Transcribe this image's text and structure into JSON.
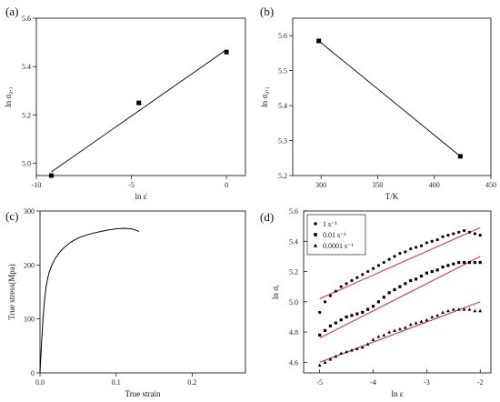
{
  "chart_data": [
    {
      "panel": "(a)",
      "type": "scatter",
      "xlabel": "ln ε̇",
      "ylabel": "ln σ₀.₁",
      "xlim": [
        -10,
        1
      ],
      "ylim": [
        4.95,
        5.6
      ],
      "xticks": [
        -10,
        -5,
        0
      ],
      "yticks": [
        5.0,
        5.2,
        5.4,
        5.6
      ],
      "points": [
        [
          -9.21,
          4.95
        ],
        [
          -4.61,
          5.25
        ],
        [
          0,
          5.46
        ]
      ],
      "fit": [
        [
          -9.21,
          4.965
        ],
        [
          0,
          5.47
        ]
      ],
      "fit_color": "#000000"
    },
    {
      "panel": "(b)",
      "type": "scatter",
      "xlabel": "T/K",
      "ylabel": "ln σ₀.₁",
      "xlim": [
        275,
        450
      ],
      "ylim": [
        5.2,
        5.65
      ],
      "xticks": [
        300,
        350,
        400,
        450
      ],
      "yticks": [
        5.2,
        5.3,
        5.4,
        5.5,
        5.6
      ],
      "points": [
        [
          298,
          5.585
        ],
        [
          423,
          5.255
        ]
      ],
      "fit": [
        [
          298,
          5.585
        ],
        [
          423,
          5.255
        ]
      ],
      "fit_color": "#000000"
    },
    {
      "panel": "(c)",
      "type": "line",
      "xlabel": "True strain",
      "ylabel": "True stress(Mpa)",
      "xlim": [
        0,
        0.27
      ],
      "ylim": [
        0,
        300
      ],
      "xticks": [
        0.0,
        0.1,
        0.2
      ],
      "yticks": [
        0,
        100,
        200,
        300
      ],
      "x": [
        0,
        0.002,
        0.004,
        0.006,
        0.008,
        0.01,
        0.012,
        0.015,
        0.02,
        0.025,
        0.03,
        0.04,
        0.05,
        0.06,
        0.07,
        0.08,
        0.09,
        0.1,
        0.11,
        0.12,
        0.125,
        0.13
      ],
      "y": [
        0,
        55,
        100,
        135,
        160,
        175,
        186,
        198,
        212,
        222,
        230,
        242,
        250,
        255,
        259,
        262,
        265,
        267,
        268,
        267,
        265,
        262
      ],
      "line_color": "#000000"
    },
    {
      "panel": "(d)",
      "type": "scatter",
      "xlabel": "ln ε",
      "ylabel": "ln σᵣ",
      "xlim": [
        -5.3,
        -1.8
      ],
      "ylim": [
        4.53,
        5.6
      ],
      "xticks": [
        -5,
        -4,
        -3,
        -2
      ],
      "yticks": [
        4.6,
        4.8,
        5.0,
        5.2,
        5.4,
        5.6
      ],
      "legend_position": "top-left",
      "series": [
        {
          "name": "1 s⁻¹",
          "marker": "circle",
          "x": [
            -5.0,
            -4.9,
            -4.8,
            -4.7,
            -4.6,
            -4.5,
            -4.4,
            -4.3,
            -4.2,
            -4.1,
            -4.0,
            -3.9,
            -3.8,
            -3.7,
            -3.6,
            -3.5,
            -3.4,
            -3.3,
            -3.2,
            -3.1,
            -3.0,
            -2.9,
            -2.8,
            -2.7,
            -2.6,
            -2.5,
            -2.4,
            -2.3,
            -2.2,
            -2.1,
            -2.0
          ],
          "y": [
            4.93,
            5.0,
            5.04,
            5.07,
            5.1,
            5.12,
            5.14,
            5.16,
            5.18,
            5.2,
            5.22,
            5.24,
            5.26,
            5.28,
            5.3,
            5.32,
            5.33,
            5.35,
            5.36,
            5.37,
            5.39,
            5.4,
            5.41,
            5.43,
            5.44,
            5.45,
            5.46,
            5.47,
            5.46,
            5.45,
            5.44
          ],
          "fit": [
            [
              -5.0,
              5.02
            ],
            [
              -2.0,
              5.49
            ]
          ]
        },
        {
          "name": "0.01 s⁻¹",
          "marker": "square",
          "x": [
            -5.0,
            -4.9,
            -4.8,
            -4.7,
            -4.6,
            -4.5,
            -4.4,
            -4.3,
            -4.2,
            -4.1,
            -4.0,
            -3.9,
            -3.8,
            -3.7,
            -3.6,
            -3.5,
            -3.4,
            -3.3,
            -3.2,
            -3.1,
            -3.0,
            -2.9,
            -2.8,
            -2.7,
            -2.6,
            -2.5,
            -2.4,
            -2.3,
            -2.2,
            -2.1,
            -2.0
          ],
          "y": [
            4.78,
            4.81,
            4.84,
            4.86,
            4.88,
            4.9,
            4.91,
            4.92,
            4.93,
            4.95,
            4.97,
            5.0,
            5.03,
            5.06,
            5.08,
            5.1,
            5.12,
            5.14,
            5.15,
            5.17,
            5.19,
            5.2,
            5.21,
            5.23,
            5.24,
            5.25,
            5.26,
            5.26,
            5.26,
            5.26,
            5.26
          ],
          "fit": [
            [
              -5.0,
              4.76
            ],
            [
              -2.0,
              5.3
            ]
          ]
        },
        {
          "name": "0.0001 s⁻¹",
          "marker": "triangle",
          "x": [
            -5.0,
            -4.9,
            -4.8,
            -4.7,
            -4.6,
            -4.5,
            -4.4,
            -4.3,
            -4.2,
            -4.1,
            -4.0,
            -3.9,
            -3.8,
            -3.7,
            -3.6,
            -3.5,
            -3.4,
            -3.3,
            -3.2,
            -3.1,
            -3.0,
            -2.9,
            -2.8,
            -2.7,
            -2.6,
            -2.5,
            -2.4,
            -2.3,
            -2.2,
            -2.1,
            -2.0
          ],
          "y": [
            4.58,
            4.6,
            4.62,
            4.64,
            4.66,
            4.67,
            4.68,
            4.69,
            4.7,
            4.72,
            4.75,
            4.77,
            4.78,
            4.8,
            4.81,
            4.82,
            4.83,
            4.85,
            4.86,
            4.87,
            4.88,
            4.9,
            4.91,
            4.93,
            4.94,
            4.95,
            4.95,
            4.95,
            4.95,
            4.94,
            4.94
          ],
          "fit": [
            [
              -5.0,
              4.6
            ],
            [
              -2.0,
              5.0
            ]
          ]
        }
      ],
      "fit_color": "#d4262c"
    }
  ]
}
